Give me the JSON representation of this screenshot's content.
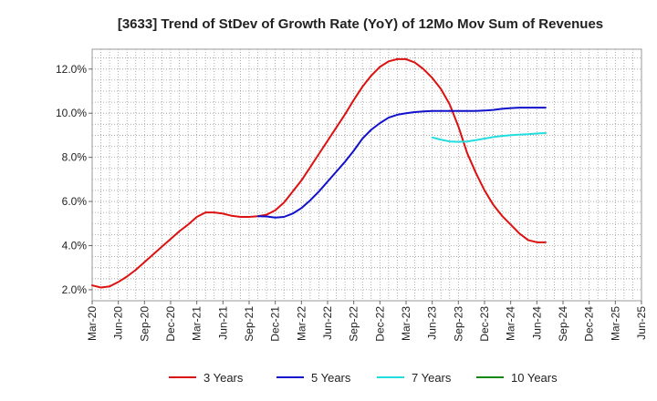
{
  "chart_data": {
    "type": "line",
    "title": "[3633]  Trend of StDev of Growth Rate (YoY) of 12Mo Mov Sum of Revenues",
    "xlabel": "",
    "ylabel": "",
    "ylim": [
      1.5,
      12.9
    ],
    "y_ticks": [
      2.0,
      4.0,
      6.0,
      8.0,
      10.0,
      12.0
    ],
    "y_tick_labels": [
      "2.0%",
      "4.0%",
      "6.0%",
      "8.0%",
      "10.0%",
      "12.0%"
    ],
    "x_tick_labels": [
      "Mar-20",
      "Jun-20",
      "Sep-20",
      "Dec-20",
      "Mar-21",
      "Jun-21",
      "Sep-21",
      "Dec-21",
      "Mar-22",
      "Jun-22",
      "Sep-22",
      "Dec-22",
      "Mar-23",
      "Jun-23",
      "Sep-23",
      "Dec-23",
      "Mar-24",
      "Jun-24",
      "Sep-24",
      "Dec-24",
      "Mar-25",
      "Jun-25"
    ],
    "grid": true,
    "legend_position": "bottom",
    "series": [
      {
        "name": "3 Years",
        "color": "#dd1111",
        "start_index": 0,
        "values": [
          2.2,
          2.1,
          2.15,
          2.35,
          2.6,
          2.9,
          3.25,
          3.6,
          3.95,
          4.3,
          4.65,
          4.95,
          5.3,
          5.5,
          5.5,
          5.45,
          5.35,
          5.3,
          5.3,
          5.33,
          5.4,
          5.6,
          5.95,
          6.45,
          6.95,
          7.55,
          8.15,
          8.75,
          9.35,
          9.95,
          10.6,
          11.2,
          11.7,
          12.1,
          12.35,
          12.45,
          12.45,
          12.3,
          12.0,
          11.6,
          11.1,
          10.4,
          9.4,
          8.2,
          7.3,
          6.5,
          5.85,
          5.35,
          4.95,
          4.55,
          4.25,
          4.15,
          4.15
        ]
      },
      {
        "name": "5 Years",
        "color": "#1111cc",
        "start_index": 19,
        "values": [
          5.33,
          5.32,
          5.27,
          5.3,
          5.45,
          5.7,
          6.05,
          6.45,
          6.9,
          7.35,
          7.8,
          8.3,
          8.85,
          9.25,
          9.55,
          9.8,
          9.93,
          10.0,
          10.05,
          10.08,
          10.1,
          10.1,
          10.1,
          10.1,
          10.1,
          10.1,
          10.12,
          10.15,
          10.2,
          10.23,
          10.25,
          10.25,
          10.25,
          10.25
        ]
      },
      {
        "name": "7 Years",
        "color": "#22dddd",
        "start_index": 39,
        "values": [
          8.9,
          8.8,
          8.72,
          8.7,
          8.72,
          8.78,
          8.85,
          8.92,
          8.97,
          9.0,
          9.03,
          9.05,
          9.08,
          9.1
        ]
      },
      {
        "name": "10 Years",
        "color": "#118811",
        "start_index": 52,
        "values": []
      }
    ]
  }
}
